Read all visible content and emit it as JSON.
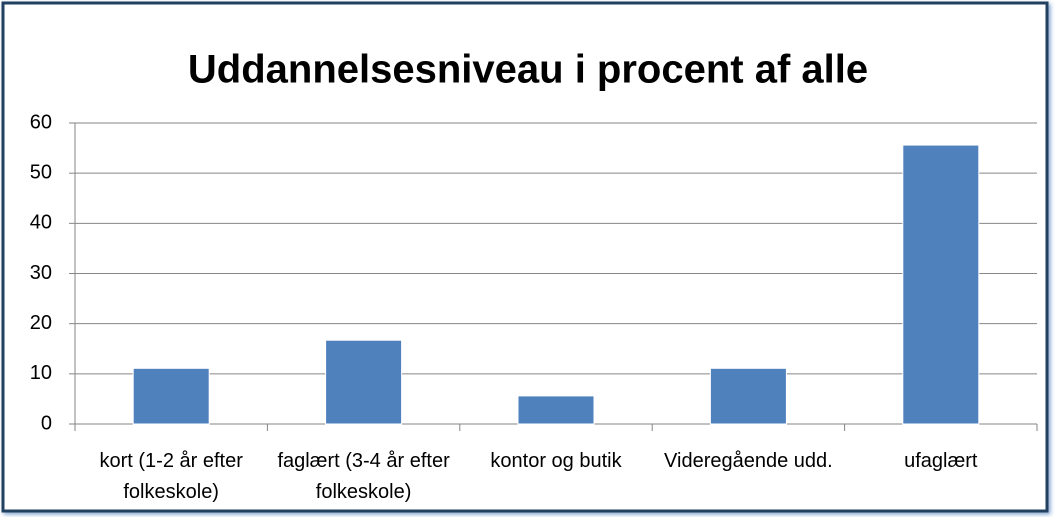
{
  "chart_data": {
    "type": "bar",
    "title": "Uddannelsesniveau i procent af alle",
    "categories": [
      "kort (1-2 år efter folkeskole)",
      "faglært (3-4 år efter folkeskole)",
      "kontor og butik",
      "Videregående udd.",
      "ufaglært"
    ],
    "values": [
      11.1,
      16.7,
      5.6,
      11.1,
      55.6
    ],
    "color": "#4f81bd",
    "ylim": [
      0,
      60
    ],
    "yticks": [
      0,
      10,
      20,
      30,
      40,
      50,
      60
    ],
    "grid": true
  }
}
